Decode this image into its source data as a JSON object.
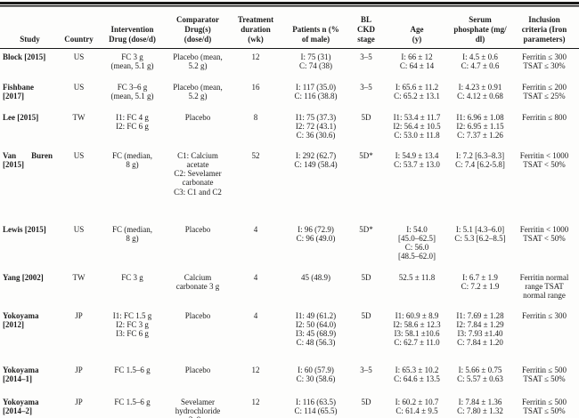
{
  "table": {
    "column_keys": [
      "study",
      "country",
      "intervention",
      "comparator",
      "duration_wk",
      "patients",
      "bl_ckd_stage",
      "age_y",
      "serum_phosphate",
      "inclusion_criteria"
    ],
    "columns": [
      [
        "Study"
      ],
      [
        "Country"
      ],
      [
        "Intervention",
        "Drug (dose/d)"
      ],
      [
        "Comparator",
        "Drug(s)",
        "(dose/d)"
      ],
      [
        "Treatment",
        "duration",
        "(wk)"
      ],
      [
        "Patients n (%",
        "of male)"
      ],
      [
        "BL",
        "CKD",
        "stage"
      ],
      [
        "Age",
        "(y)"
      ],
      [
        "Serum",
        "phosphate (mg/",
        "dl)"
      ],
      [
        "Inclusion",
        "criteria (Iron",
        "parameters)"
      ]
    ],
    "rows": [
      {
        "study": "Block [2015]",
        "country": "US",
        "intervention": [
          "FC 3 g",
          "(mean, 5.1 g)"
        ],
        "comparator": [
          "Placebo (mean,",
          "5.2 g)"
        ],
        "duration_wk": "12",
        "patients": [
          "I: 75 (31)",
          "C: 74 (38)"
        ],
        "bl_ckd_stage": "3–5",
        "age_y": [
          "I: 66 ± 12",
          "C: 64 ± 14"
        ],
        "serum_phosphate": [
          "I: 4.5 ± 0.6",
          "C: 4.7 ± 0.6"
        ],
        "inclusion_criteria": [
          "Ferritin ≤ 300",
          "TSAT ≤ 30%"
        ]
      },
      {
        "study": "Fishbane [2017]",
        "country": "US",
        "intervention": [
          "FC 3–6 g",
          "(mean, 5.1 g)"
        ],
        "comparator": [
          "Placebo (mean,",
          "5.2 g)"
        ],
        "duration_wk": "16",
        "patients": [
          "I: 117 (35.0)",
          "C: 116 (38.8)"
        ],
        "bl_ckd_stage": "3–5",
        "age_y": [
          "I: 65.6 ± 11.2",
          "C: 65.2 ± 13.1"
        ],
        "serum_phosphate": [
          "I: 4.23 ± 0.91",
          "C: 4.12 ± 0.68"
        ],
        "inclusion_criteria": [
          "Ferritin ≤ 200",
          "TSAT ≤ 25%"
        ]
      },
      {
        "study": "Lee [2015]",
        "country": "TW",
        "intervention": [
          "I1: FC 4 g",
          "I2: FC 6 g"
        ],
        "comparator": [
          "Placebo"
        ],
        "duration_wk": "8",
        "patients": [
          "I1: 75 (37.3)",
          "I2: 72 (43.1)",
          "C: 36 (30.6)"
        ],
        "bl_ckd_stage": "5D",
        "age_y": [
          "I1: 53.4 ± 11.7",
          "I2: 56.4 ± 10.5",
          "C: 53.0 ± 11.8"
        ],
        "serum_phosphate": [
          "I1: 6.96 ± 1.08",
          "I2: 6.95 ± 1.15",
          "C: 7.37 ± 1.26"
        ],
        "inclusion_criteria": [
          "Ferritin ≤ 800"
        ]
      },
      {
        "study": "Van Buren [2015]",
        "country": "US",
        "intervention": [
          "FC (median,",
          "8 g)"
        ],
        "comparator": [
          "C1: Calcium",
          "acetate",
          "C2: Sevelamer",
          "carbonate",
          "C3: C1 and C2"
        ],
        "duration_wk": "52",
        "patients": [
          "I: 292 (62.7)",
          "C: 149 (58.4)"
        ],
        "bl_ckd_stage": "5D*",
        "age_y": [
          "I: 54.9 ± 13.4",
          "C: 53.7 ± 13.0"
        ],
        "serum_phosphate": [
          "I: 7.2 [6.3–8.3]",
          "C: 7.4 [6.2-5.8]"
        ],
        "inclusion_criteria": [
          "Ferritin < 1000",
          "TSAT < 50%"
        ]
      },
      {
        "study": "Lewis [2015]",
        "country": "US",
        "intervention": [
          "FC (median,",
          "8 g)"
        ],
        "comparator": [
          "Placebo"
        ],
        "duration_wk": "4",
        "patients": [
          "I: 96 (72.9)",
          "C: 96 (49.0)"
        ],
        "bl_ckd_stage": "5D*",
        "age_y": [
          "I: 54.0",
          "[45.0–62.5]",
          "C: 56.0",
          "[48.5–62.0]"
        ],
        "serum_phosphate": [
          "I: 5.1 [4.3–6.0]",
          "C: 5.3 [6.2–8.5]"
        ],
        "inclusion_criteria": [
          "Ferritin < 1000",
          "TSAT < 50%"
        ]
      },
      {
        "study": "Yang [2002]",
        "country": "TW",
        "intervention": [
          "FC 3 g"
        ],
        "comparator": [
          "Calcium",
          "carbonate 3 g"
        ],
        "duration_wk": "4",
        "patients": [
          "45 (48.9)"
        ],
        "bl_ckd_stage": "5D",
        "age_y": [
          "52.5 ± 11.8"
        ],
        "serum_phosphate": [
          "I: 6.7 ± 1.9",
          "C: 7.2 ± 1.9"
        ],
        "inclusion_criteria": [
          "Ferritin normal",
          "range TSAT",
          "normal range"
        ]
      },
      {
        "study": "Yokoyama [2012]",
        "country": "JP",
        "intervention": [
          "I1: FC 1.5 g",
          "I2: FC 3 g",
          "I3: FC 6 g"
        ],
        "comparator": [
          "Placebo"
        ],
        "duration_wk": "4",
        "patients": [
          "I1: 49 (61.2)",
          "I2: 50 (64.0)",
          "I3: 45 (68.9)",
          "C: 48 (56.3)"
        ],
        "bl_ckd_stage": "5D",
        "age_y": [
          "I1: 60.9 ± 8.9",
          "I2: 58.6 ± 12.3",
          "I3: 58.1 ±10.6",
          "C: 62.7 ± 11.0"
        ],
        "serum_phosphate": [
          "I1: 7.69 ± 1.28",
          "I2: 7.84 ± 1.29",
          "I3: 7.93 ±1.40",
          "C: 7.84 ± 1.20"
        ],
        "inclusion_criteria": [
          "Ferritin ≤ 300"
        ]
      },
      {
        "study": "Yokoyama [2014–1]",
        "country": "JP",
        "intervention": [
          "FC 1.5–6 g"
        ],
        "comparator": [
          "Placebo"
        ],
        "duration_wk": "12",
        "patients": [
          "I: 60 (57.9)",
          "C: 30 (58.6)"
        ],
        "bl_ckd_stage": "3–5",
        "age_y": [
          "I: 65.3 ± 10.2",
          "C: 64.6 ± 13.5"
        ],
        "serum_phosphate": [
          "I: 5.66 ± 0.75",
          "C: 5.57 ± 0.63"
        ],
        "inclusion_criteria": [
          "Ferritin ≤ 500",
          "TSAT ≤ 50%"
        ]
      },
      {
        "study": "Yokoyama [2014–2]",
        "country": "JP",
        "intervention": [
          "FC 1.5–6 g"
        ],
        "comparator": [
          "Sevelamer",
          "hydrochloride",
          "3–9 g"
        ],
        "duration_wk": "12",
        "patients": [
          "I: 116 (63.5)",
          "C: 114 (65.5)"
        ],
        "bl_ckd_stage": "5D",
        "age_y": [
          "I: 60.2 ± 10.7",
          "C: 61.4 ± 9.5"
        ],
        "serum_phosphate": [
          "I: 7.84 ± 1.36",
          "C: 7.80 ± 1.32"
        ],
        "inclusion_criteria": [
          "Ferritin ≤ 500",
          "TSAT ≤ 50%"
        ]
      }
    ]
  }
}
